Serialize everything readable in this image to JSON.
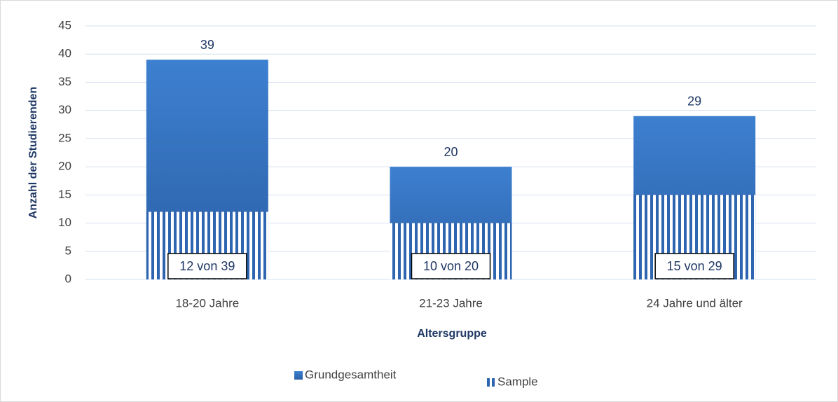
{
  "chart_data": {
    "type": "bar",
    "y_label": "Anzahl der Studierenden",
    "x_label": "Altersgruppe",
    "categories": [
      "18-20 Jahre",
      "21-23 Jahre",
      "24 Jahre und älter"
    ],
    "series": [
      {
        "name": "Grundgesamtheit",
        "color": "#3674c4",
        "values": [
          39,
          20,
          29
        ]
      },
      {
        "name": "Sample",
        "color": "#2e65b0",
        "values": [
          12,
          10,
          15
        ],
        "value_labels": [
          "12 von 39",
          "10 von 20",
          "15 von 29"
        ]
      }
    ],
    "ylim": [
      0,
      45
    ],
    "yticks": [
      0,
      5,
      10,
      15,
      20,
      25,
      30,
      35,
      40,
      45
    ],
    "grid": true,
    "legend": "bottom"
  }
}
